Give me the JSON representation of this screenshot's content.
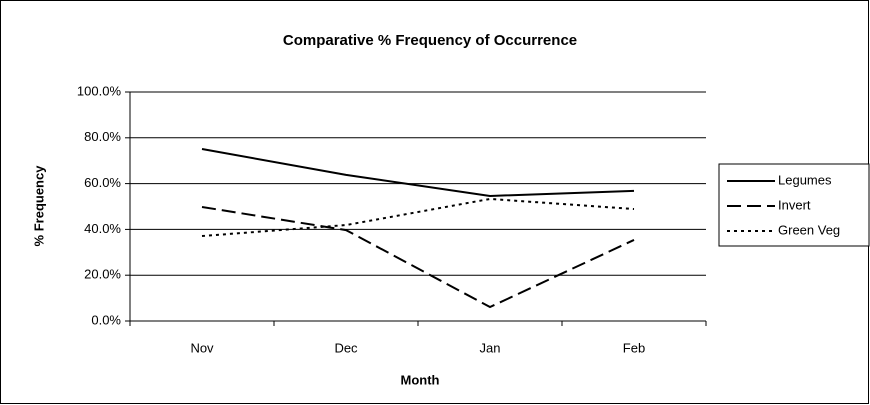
{
  "chart_data": {
    "type": "line",
    "title": "Comparative % Frequency of Occurrence",
    "x_label": "Month",
    "y_label": "% Frequency",
    "categories": [
      "Nov",
      "Dec",
      "Jan",
      "Feb"
    ],
    "series": [
      {
        "name": "Legumes",
        "color": "#000000",
        "dash": "solid",
        "values": [
          75.1,
          63.8,
          54.6,
          56.8
        ]
      },
      {
        "name": "Invert",
        "color": "#000000",
        "dash": "dashed",
        "values": [
          49.8,
          39.7,
          6.1,
          35.4
        ]
      },
      {
        "name": "Green Veg",
        "color": "#000000",
        "dash": "dotted",
        "values": [
          37.1,
          41.9,
          53.3,
          48.9
        ]
      }
    ],
    "ylim": [
      0,
      100
    ],
    "yticks": [
      {
        "value": 0,
        "label": "0.0%"
      },
      {
        "value": 20,
        "label": "20.0%"
      },
      {
        "value": 40,
        "label": "40.0%"
      },
      {
        "value": 60,
        "label": "60.0%"
      },
      {
        "value": 80,
        "label": "80.0%"
      },
      {
        "value": 100,
        "label": "100.0%"
      }
    ],
    "grid": true,
    "legend": "right"
  }
}
